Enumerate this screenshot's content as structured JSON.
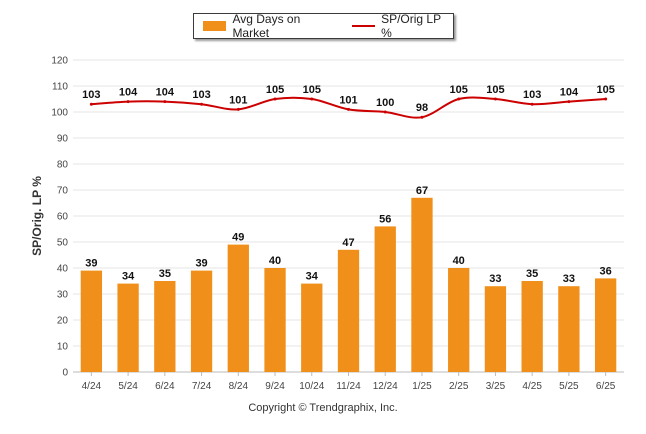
{
  "chart_data": {
    "type": "bar",
    "categories": [
      "4/24",
      "5/24",
      "6/24",
      "7/24",
      "8/24",
      "9/24",
      "10/24",
      "11/24",
      "12/24",
      "1/25",
      "2/25",
      "3/25",
      "4/25",
      "5/25",
      "6/25"
    ],
    "series": [
      {
        "name": "Avg Days on Market",
        "type": "bar",
        "color": "#f0901a",
        "values": [
          39,
          34,
          35,
          39,
          49,
          40,
          34,
          47,
          56,
          67,
          40,
          33,
          35,
          33,
          36
        ]
      },
      {
        "name": "SP/Orig LP %",
        "type": "line",
        "color": "#cc0000",
        "values": [
          103,
          104,
          104,
          103,
          101,
          105,
          105,
          101,
          100,
          98,
          105,
          105,
          103,
          104,
          105
        ]
      }
    ],
    "ylabel": "SP/Orig. LP %",
    "ylim": [
      0,
      120
    ],
    "yticks": [
      0,
      10,
      20,
      30,
      40,
      50,
      60,
      70,
      80,
      90,
      100,
      110,
      120
    ],
    "grid": true,
    "legend_position": "top-center"
  },
  "legend": {
    "bar_label": "Avg Days on Market",
    "line_label": "SP/Orig LP %"
  },
  "footer": {
    "copyright": "Copyright © Trendgraphix, Inc."
  }
}
